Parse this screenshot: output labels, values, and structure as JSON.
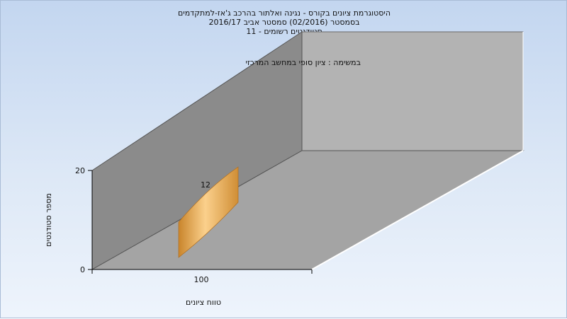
{
  "title_lines": [
    "היסטוגרמת ציונים בקורס - נגינה ואלתור בהרכב ג'אז-למתקדמים",
    "בסמסטר  (02/2016)  סמסטר אביב 2016/17",
    "סטודנטים רשומים - 11"
  ],
  "chart_data": {
    "type": "bar",
    "title": "היסטוגרמת ציונים בקורס - נגינה ואלתור בהרכב ג'אז-למתקדמים",
    "subtitle": "במשימה : ציון סופי במחשב המרכזי",
    "categories": [
      "100"
    ],
    "series": [
      {
        "values": [
          12
        ],
        "color": "#f2b055"
      }
    ],
    "xlabel": "טווח ציונים",
    "ylabel": "מספר סטודנטים",
    "ylim": [
      0,
      20
    ],
    "yticks": [
      "0",
      "20"
    ],
    "data_labels": [
      "12"
    ],
    "grid": false,
    "style": "3d"
  }
}
